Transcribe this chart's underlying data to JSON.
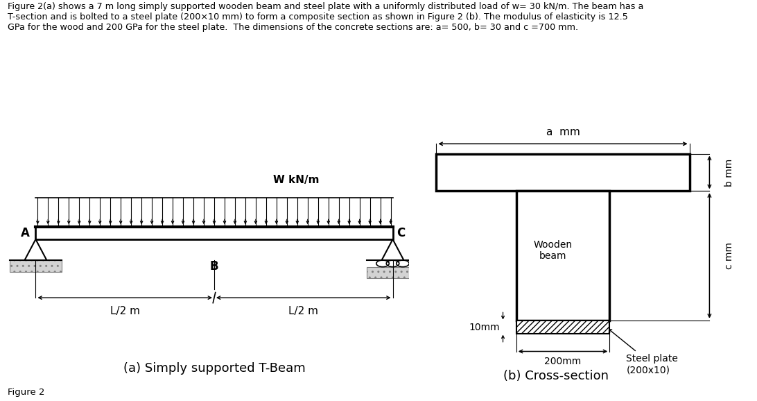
{
  "title_text": "Figure 2(a) shows a 7 m long simply supported wooden beam and steel plate with a uniformly distributed load of w= 30 kN/m. The beam has a\nT-section and is bolted to a steel plate (200×10 mm) to form a composite section as shown in Figure 2 (b). The modulus of elasticity is 12.5\nGPa for the wood and 200 GPa for the steel plate.  The dimensions of the concrete sections are: a= 500, b= 30 and c =700 mm.",
  "figure_label": "Figure 2",
  "beam_label_a": "(a) Simply supported T-Beam",
  "beam_label_b": "(b) Cross-section",
  "bg_color": "#ffffff",
  "label_A": "A",
  "label_B": "B",
  "label_C": "C",
  "label_w": "W kN/m",
  "label_L2_left": "L/2 m",
  "label_L2_right": "L/2 m",
  "label_a_mm": "a  mm",
  "label_b_mm": "b mm",
  "label_c_mm": "c mm",
  "label_wooden": "Wooden\nbeam",
  "label_10mm": "10mm",
  "label_200mm": "200mm",
  "label_steel": "Steel plate\n(200x10)",
  "n_arrows": 35
}
